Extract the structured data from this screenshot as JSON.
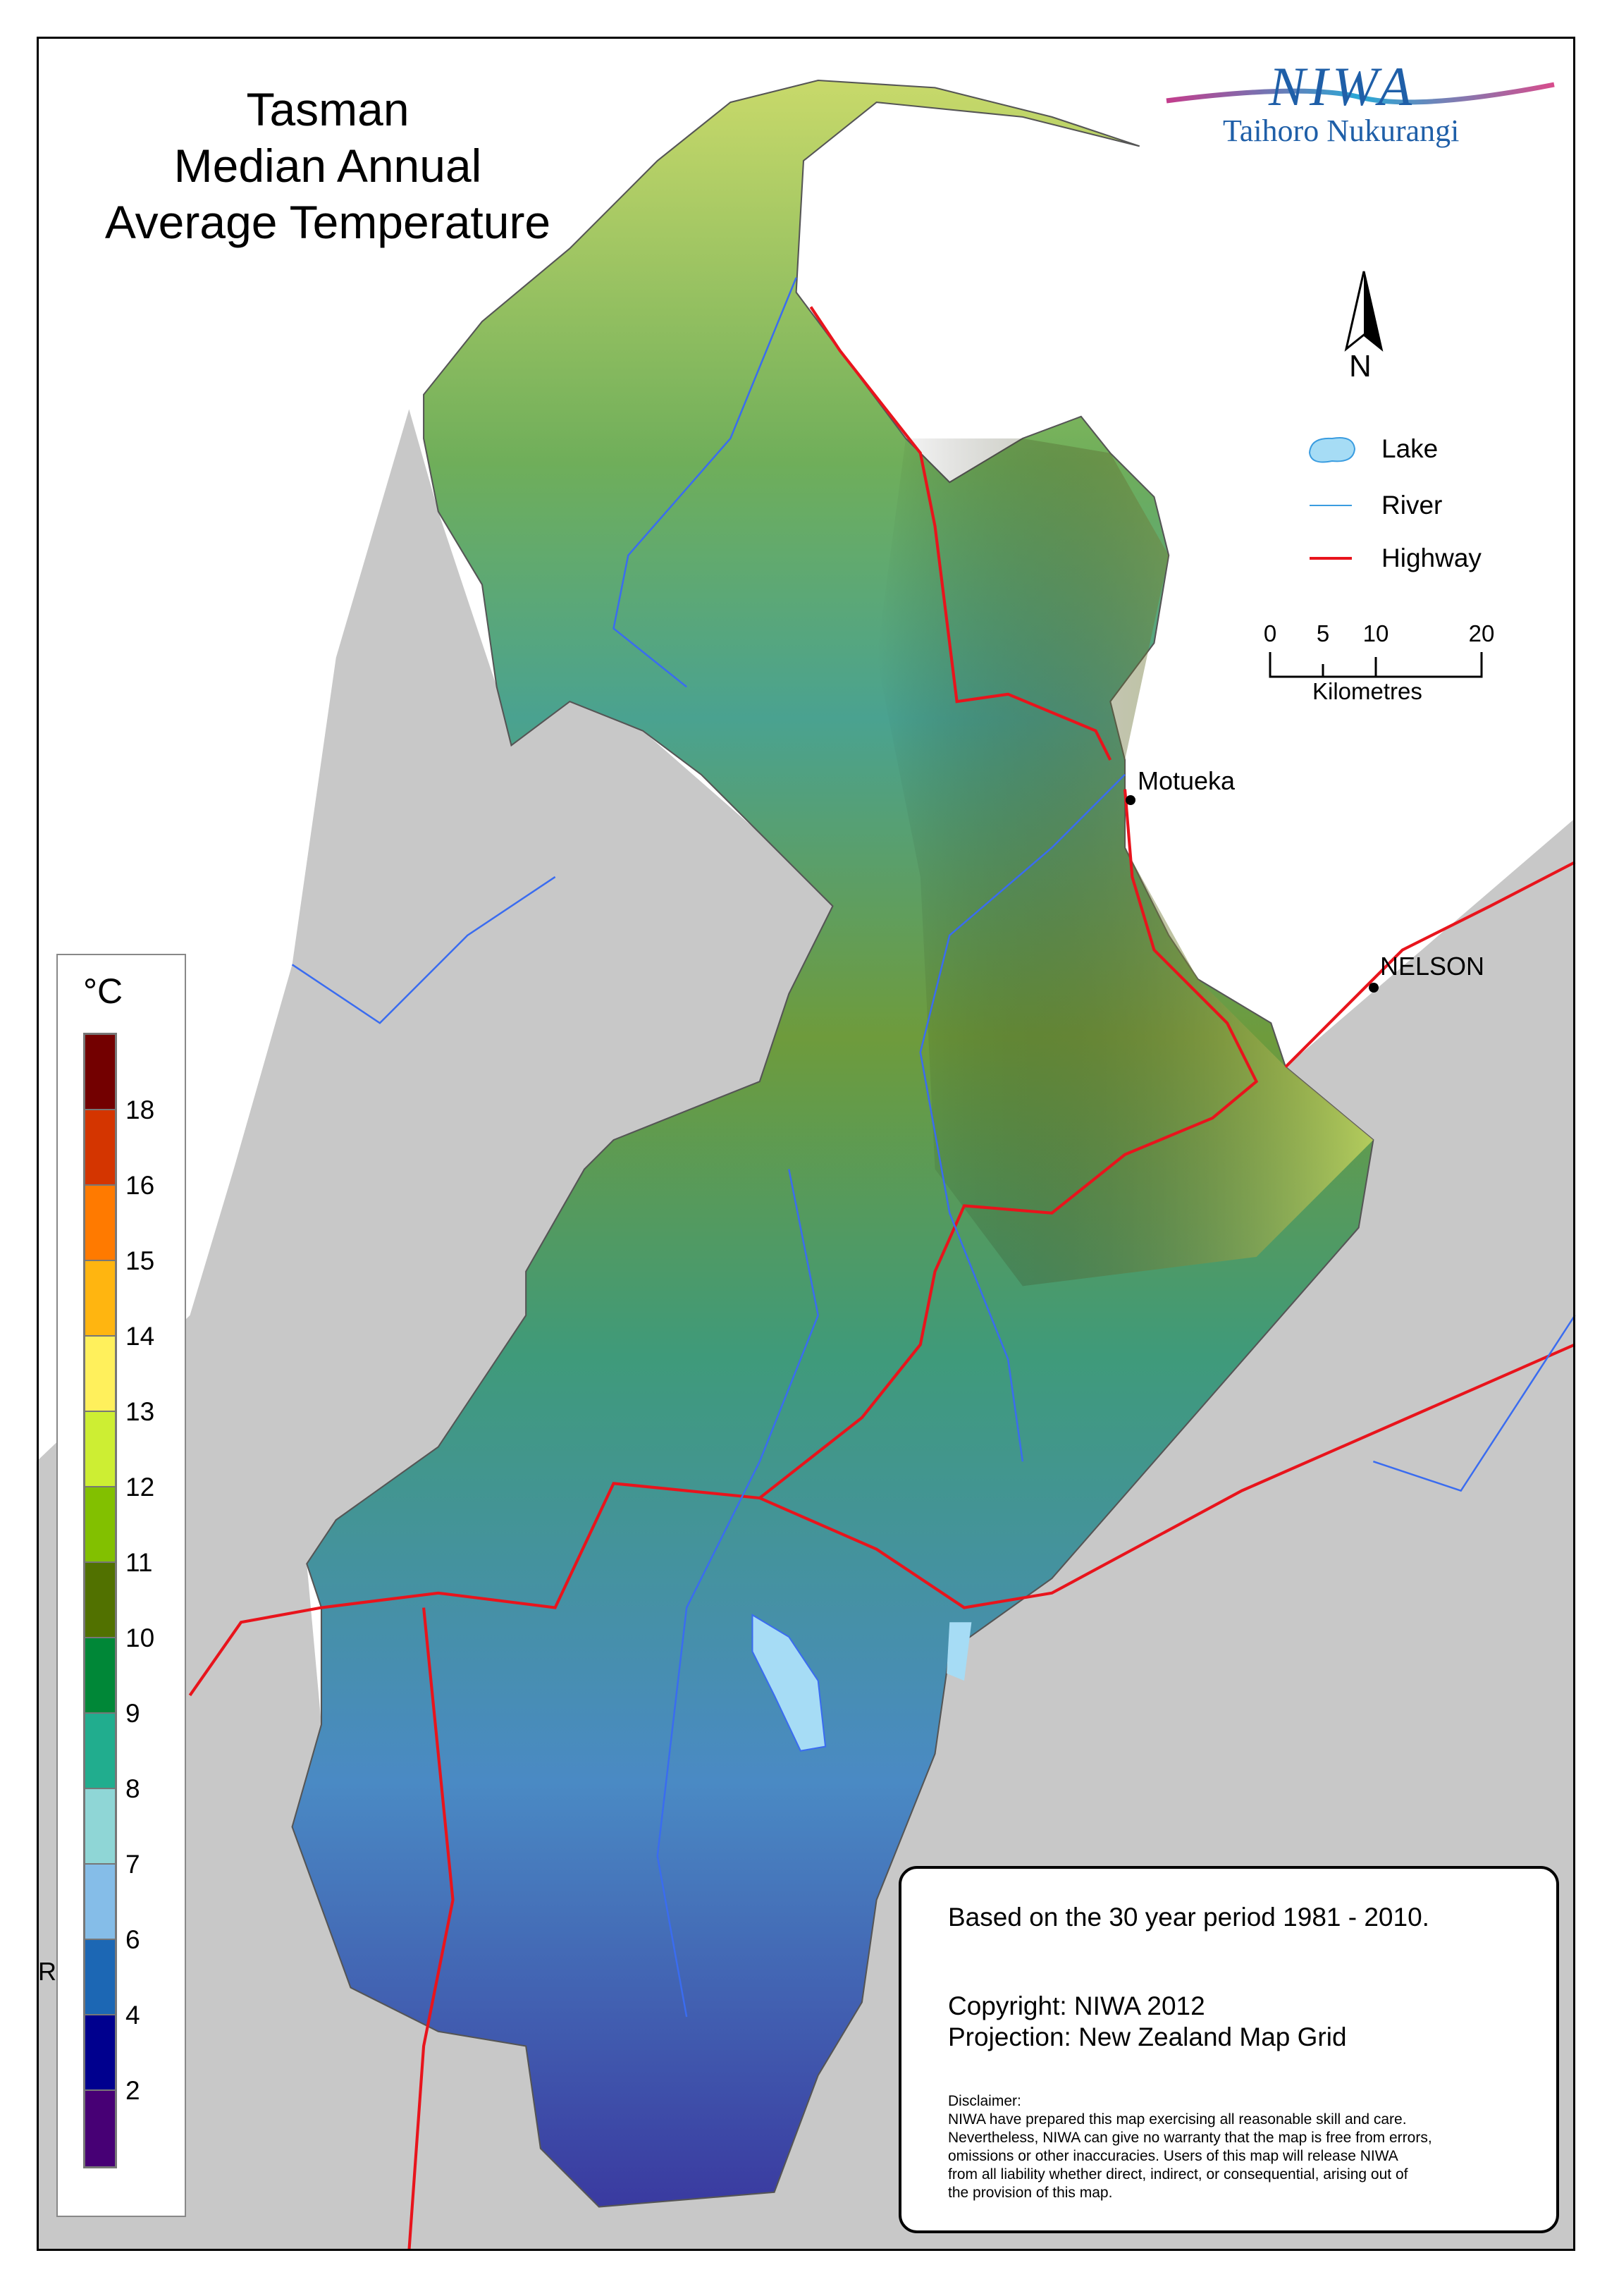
{
  "title": {
    "line1": "Tasman",
    "line2": "Median Annual",
    "line3": "Average Temperature"
  },
  "logo": {
    "wordmark": "NIWA",
    "subtitle": "Taihoro Nukurangi"
  },
  "north_arrow": {
    "label": "N"
  },
  "map_legend": {
    "lake": {
      "label": "Lake",
      "color": "#a6dcf5"
    },
    "river": {
      "label": "River",
      "color": "#3a6cf0"
    },
    "highway": {
      "label": "Highway",
      "color": "#e8141c"
    }
  },
  "scale_bar": {
    "ticks": [
      "0",
      "5",
      "10",
      "20"
    ],
    "unit": "Kilometres"
  },
  "places": {
    "motueka": "Motueka",
    "nelson": "NELSON",
    "edge_label": "R"
  },
  "temperature_legend": {
    "unit": "°C",
    "colors": [
      "#730000",
      "#d43500",
      "#ff7a00",
      "#ffb510",
      "#fff05c",
      "#cdee33",
      "#82c000",
      "#517100",
      "#008737",
      "#21ad8e",
      "#8fd6d6",
      "#85bde8",
      "#1c67b4",
      "#00008e",
      "#470075"
    ],
    "labels": [
      "18",
      "16",
      "15",
      "14",
      "13",
      "12",
      "11",
      "10",
      "9",
      "8",
      "7",
      "6",
      "4",
      "2"
    ]
  },
  "info": {
    "period": "Based on the 30 year period 1981 - 2010.",
    "copyright": "Copyright: NIWA 2012",
    "projection": "Projection: New Zealand Map Grid",
    "disclaimer": "Disclaimer:\nNIWA have prepared this map exercising all reasonable skill and care.\nNevertheless, NIWA can give no warranty that the map is free from errors,\nomissions or other inaccuracies. Users of this map will release NIWA\nfrom all liability whether direct, indirect, or consequential, arising out of\nthe provision of this map."
  }
}
